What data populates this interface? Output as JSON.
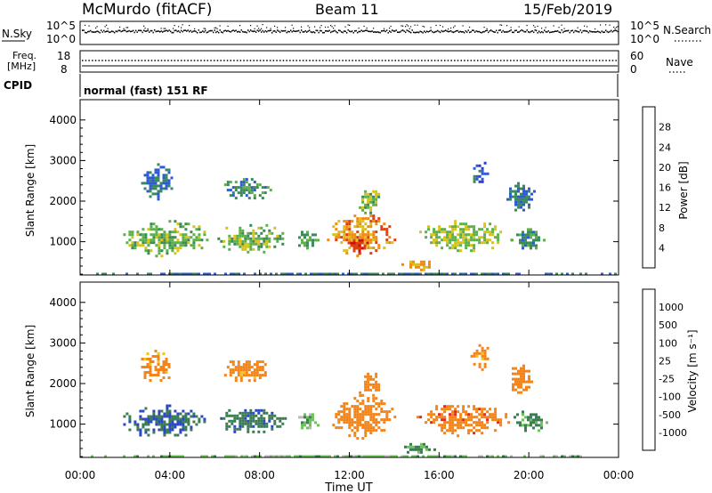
{
  "header": {
    "station": "McMurdo (fitACF)",
    "beam": "Beam 11",
    "date": "15/Feb/2019"
  },
  "noise_panel": {
    "left_label": "N.Sky",
    "right_label": "N.Search",
    "left_ticks": [
      "10^5",
      "10^0"
    ],
    "right_ticks": [
      "10^5",
      "10^0"
    ]
  },
  "freq_panel": {
    "left_label_1": "Freq.",
    "left_label_2": "[MHz]",
    "right_label": "Nave",
    "left_ticks": [
      "18",
      "8"
    ],
    "right_ticks": [
      "60",
      "0"
    ]
  },
  "cpid_panel": {
    "label": "CPID",
    "mode": "normal (fast) 151 RF"
  },
  "x_axis": {
    "title": "Time UT",
    "ticks": [
      "00:00",
      "04:00",
      "08:00",
      "12:00",
      "16:00",
      "20:00",
      "00:00"
    ]
  },
  "colors": {
    "power": [
      "#2a3ccc",
      "#2e5bd4",
      "#3a8a5a",
      "#5cb04a",
      "#d8c21a",
      "#f08a10",
      "#e04010",
      "#d00c0c"
    ],
    "velocity": [
      "#0a1ed2",
      "#2c46c8",
      "#3a7d52",
      "#6cc35a",
      "#b8b8b8",
      "#f3c21e",
      "#f2841a",
      "#e12a1a",
      "#d80000"
    ]
  },
  "chart_data": [
    {
      "type": "heatmap",
      "title": "Power",
      "xlabel": "Time UT",
      "ylabel": "Slant Range [km]",
      "xlim": [
        0,
        24
      ],
      "ylim": [
        180,
        4500
      ],
      "yticks": [
        "1000",
        "2000",
        "3000",
        "4000"
      ],
      "colorbar": {
        "label": "Power [dB]",
        "range": [
          0,
          32
        ],
        "ticks": [
          "4",
          "8",
          "12",
          "16",
          "20",
          "24",
          "28"
        ]
      },
      "regions": [
        {
          "t0": 1.8,
          "t1": 5.8,
          "r0": 600,
          "r1": 1600,
          "value": 14
        },
        {
          "t0": 2.6,
          "t1": 4.2,
          "r0": 2000,
          "r1": 3000,
          "value": 8
        },
        {
          "t0": 6.0,
          "t1": 9.2,
          "r0": 700,
          "r1": 1500,
          "value": 14
        },
        {
          "t0": 6.3,
          "t1": 8.5,
          "r0": 2000,
          "r1": 2700,
          "value": 10
        },
        {
          "t0": 9.6,
          "t1": 10.6,
          "r0": 800,
          "r1": 1400,
          "value": 12
        },
        {
          "t0": 11.0,
          "t1": 14.0,
          "r0": 600,
          "r1": 1800,
          "value": 22
        },
        {
          "t0": 11.8,
          "t1": 12.8,
          "r0": 700,
          "r1": 1200,
          "value": 28
        },
        {
          "t0": 12.3,
          "t1": 13.4,
          "r0": 1600,
          "r1": 2400,
          "value": 14
        },
        {
          "t0": 14.2,
          "t1": 15.8,
          "r0": 300,
          "r1": 600,
          "value": 20
        },
        {
          "t0": 15.0,
          "t1": 19.2,
          "r0": 700,
          "r1": 1600,
          "value": 16
        },
        {
          "t0": 17.4,
          "t1": 18.2,
          "r0": 2300,
          "r1": 3100,
          "value": 6
        },
        {
          "t0": 19.0,
          "t1": 20.2,
          "r0": 1700,
          "r1": 2600,
          "value": 8
        },
        {
          "t0": 19.2,
          "t1": 20.8,
          "r0": 800,
          "r1": 1400,
          "value": 10
        },
        {
          "t0": 0.0,
          "t1": 24.0,
          "r0": 180,
          "r1": 300,
          "value": 8
        }
      ]
    },
    {
      "type": "heatmap",
      "title": "Velocity",
      "xlabel": "Time UT",
      "ylabel": "Slant Range [km]",
      "xlim": [
        0,
        24
      ],
      "ylim": [
        180,
        4500
      ],
      "yticks": [
        "1000",
        "2000",
        "3000",
        "4000"
      ],
      "colorbar": {
        "label": "Velocity [m s⁻¹]",
        "ticks": [
          "1000",
          "500",
          "100",
          "25",
          "-25",
          "-100",
          "-500",
          "-1000"
        ]
      },
      "regions": [
        {
          "t0": 1.8,
          "t1": 5.8,
          "r0": 650,
          "r1": 1550,
          "value": 300
        },
        {
          "t0": 2.6,
          "t1": 4.2,
          "r0": 2000,
          "r1": 2900,
          "value": -150
        },
        {
          "t0": 6.0,
          "t1": 9.2,
          "r0": 700,
          "r1": 1500,
          "value": 250
        },
        {
          "t0": 6.3,
          "t1": 8.5,
          "r0": 2000,
          "r1": 2700,
          "value": -150
        },
        {
          "t0": 9.6,
          "t1": 10.6,
          "r0": 800,
          "r1": 1400,
          "value": 50
        },
        {
          "t0": 11.0,
          "t1": 14.0,
          "r0": 600,
          "r1": 1800,
          "value": -300
        },
        {
          "t0": 12.3,
          "t1": 13.4,
          "r0": 1600,
          "r1": 2400,
          "value": -200
        },
        {
          "t0": 14.2,
          "t1": 15.8,
          "r0": 300,
          "r1": 600,
          "value": 60
        },
        {
          "t0": 15.0,
          "t1": 19.2,
          "r0": 700,
          "r1": 1600,
          "value": -400
        },
        {
          "t0": 17.4,
          "t1": 18.2,
          "r0": 2300,
          "r1": 3100,
          "value": -150
        },
        {
          "t0": 19.0,
          "t1": 20.2,
          "r0": 1700,
          "r1": 2600,
          "value": -250
        },
        {
          "t0": 19.2,
          "t1": 20.8,
          "r0": 800,
          "r1": 1400,
          "value": 80
        },
        {
          "t0": 0.0,
          "t1": 24.0,
          "r0": 180,
          "r1": 300,
          "value": 40
        }
      ]
    }
  ]
}
